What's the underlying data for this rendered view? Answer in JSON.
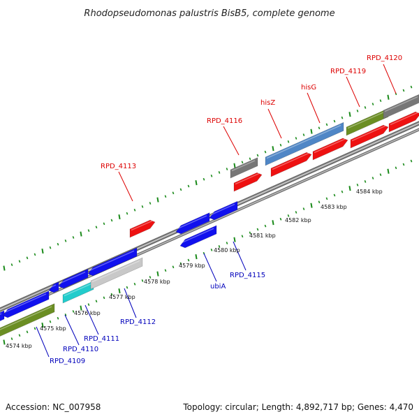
{
  "title": "Rhodopseudomonas palustris BisB5, complete genome",
  "accession": "Accession: NC_007958",
  "summary": "Topology: circular; Length: 4,892,717 bp; Genes: 4,470",
  "scale_labels": [
    "4574 kbp",
    "4575 kbp",
    "4576 kbp",
    "4577 kbp",
    "4578 kbp",
    "4579 kbp",
    "4580 kbp",
    "4581 kbp",
    "4582 kbp",
    "4583 kbp",
    "4584 kbp"
  ],
  "gene_labels": [
    {
      "text": "RPD_4113",
      "color": "#dd0000"
    },
    {
      "text": "RPD_4116",
      "color": "#dd0000"
    },
    {
      "text": "hisZ",
      "color": "#dd0000"
    },
    {
      "text": "hisG",
      "color": "#dd0000"
    },
    {
      "text": "RPD_4119",
      "color": "#dd0000"
    },
    {
      "text": "RPD_4120",
      "color": "#dd0000"
    },
    {
      "text": "RPD_4109",
      "color": "#0000bb"
    },
    {
      "text": "RPD_4110",
      "color": "#0000bb"
    },
    {
      "text": "RPD_4111",
      "color": "#0000bb"
    },
    {
      "text": "RPD_4112",
      "color": "#0000bb"
    },
    {
      "text": "ubiA",
      "color": "#0000bb"
    },
    {
      "text": "RPD_4115",
      "color": "#0000bb"
    }
  ],
  "colors": {
    "forward_cds": "#ee1111",
    "reverse_cds": "#1111ee",
    "rna_olive": "#6b8e23",
    "gray_feature": "#777777",
    "light_gray_feature": "#c8c8c8",
    "steel_blue_feature": "#4f86c6",
    "cyan_feature": "#22cccc",
    "backbone": "#8a8a8a",
    "tick": "#1a8a1a"
  }
}
